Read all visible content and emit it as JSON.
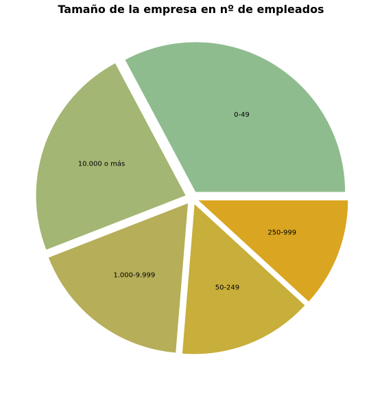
{
  "chart_data": {
    "type": "pie",
    "title": "Tamaño de la empresa en nº de empleados",
    "categories": [
      "0-49",
      "10.000 o más",
      "1.000-9.999",
      "50-249",
      "250-999"
    ],
    "values": [
      32.8,
      23.1,
      17.8,
      14.5,
      11.8
    ],
    "colors": [
      "#8fbc8f",
      "#a4b674",
      "#b6ae58",
      "#c8ae3a",
      "#daa520"
    ],
    "start_angle_deg": 0,
    "direction": "counterclockwise",
    "exploded": true,
    "legend": "none"
  }
}
